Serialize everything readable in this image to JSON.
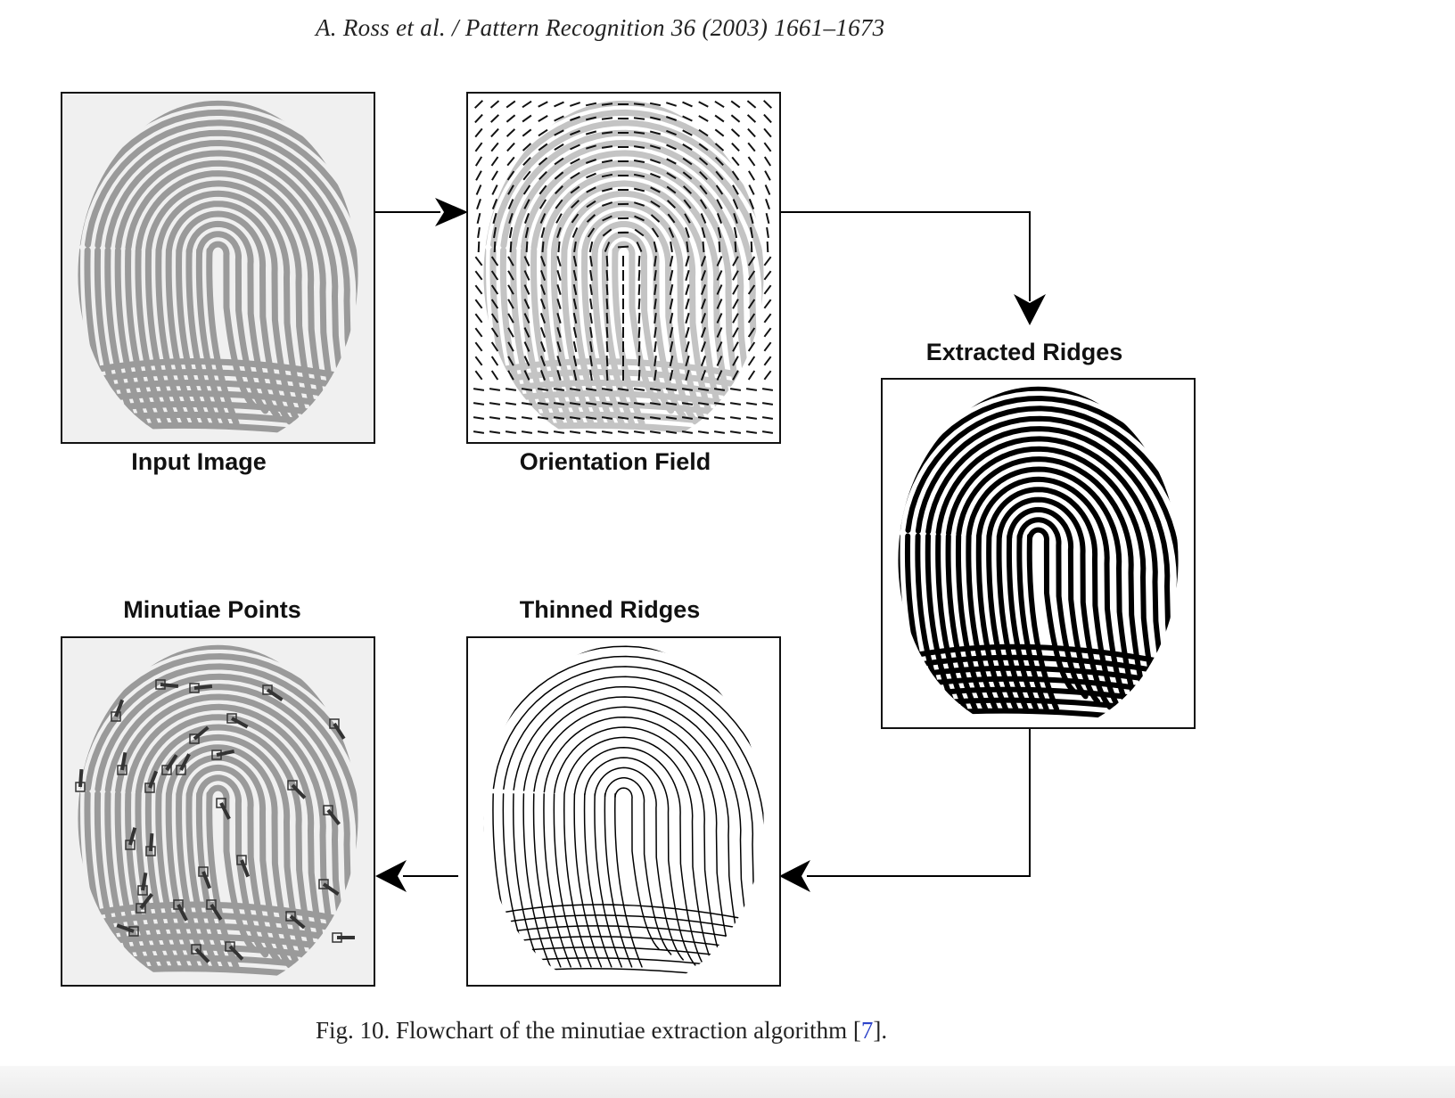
{
  "header": {
    "running_header": "A. Ross et al. / Pattern Recognition 36 (2003) 1661–1673"
  },
  "figure": {
    "panels": {
      "input_image": "Input Image",
      "orientation_field": "Orientation Field",
      "extracted_ridges": "Extracted Ridges",
      "thinned_ridges": "Thinned Ridges",
      "minutiae_points": "Minutiae Points"
    },
    "caption_prefix": "Fig. 10. Flowchart of the minutiae extraction algorithm [",
    "caption_cite": "7",
    "caption_suffix": "]."
  },
  "colors": {
    "fingerprint_gray": "#9a9a9a",
    "ridge_black": "#000000",
    "minutia_marker": "#333333",
    "citation_link": "#2d43c9"
  }
}
